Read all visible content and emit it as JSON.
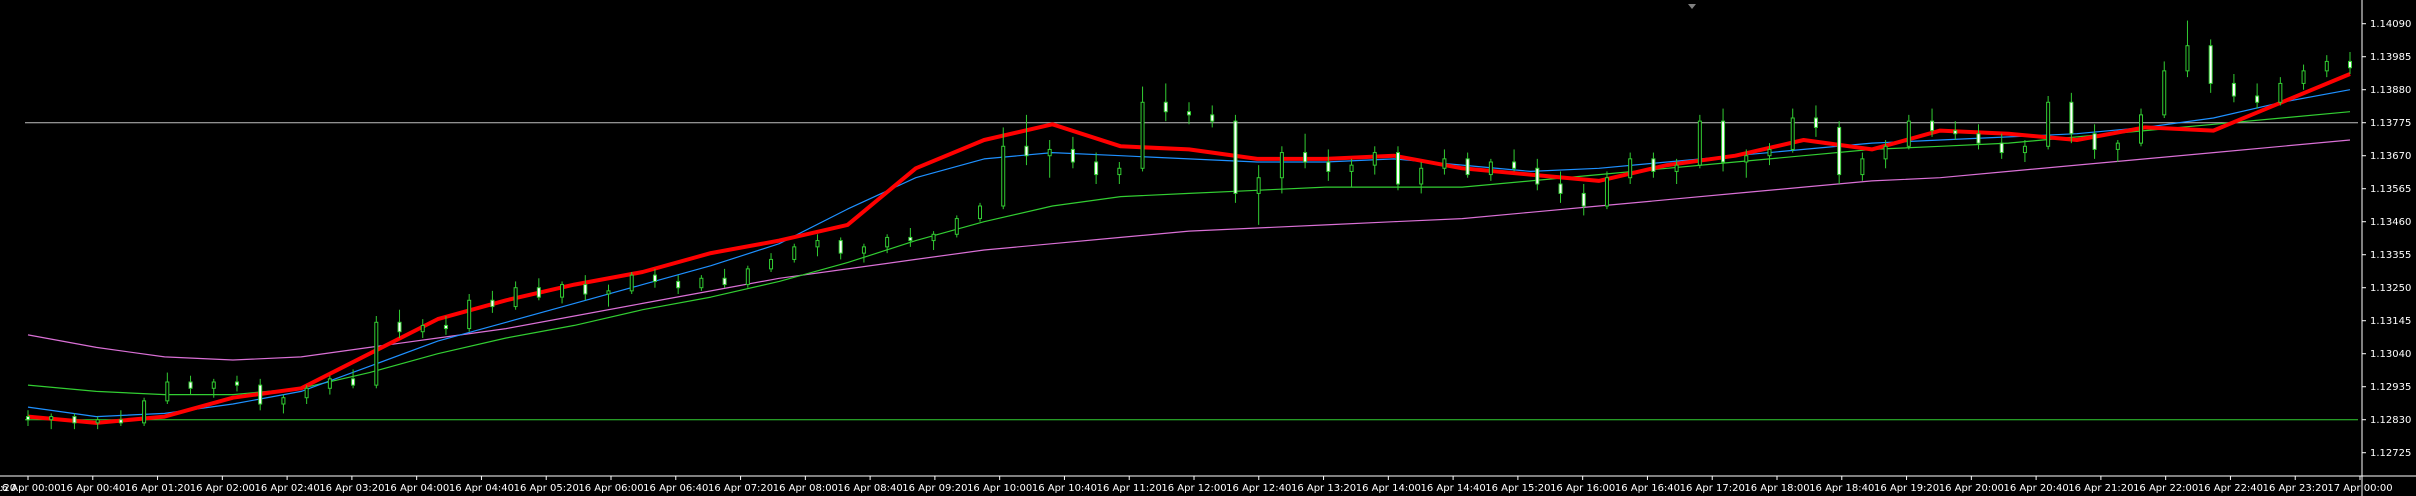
{
  "window": {
    "background": "#000000",
    "foreground": "#ffffff"
  },
  "chart_data": {
    "type": "candlestick",
    "y_range": [
      1.1267,
      1.1414
    ],
    "x_range": [
      "16 Apr 00:00",
      "17 Apr 00:00"
    ],
    "grid": false,
    "price_ticks": [
      "1.14090",
      "1.13985",
      "1.13880",
      "1.13775",
      "1.13670",
      "1.13565",
      "1.13460",
      "1.13355",
      "1.13250",
      "1.13145",
      "1.13040",
      "1.12935",
      "1.12830",
      "1.12725"
    ],
    "time_ticks": [
      "16 Apr 00:00",
      "16 Apr 00:40",
      "16 Apr 01:20",
      "16 Apr 02:00",
      "16 Apr 02:40",
      "16 Apr 03:20",
      "16 Apr 04:00",
      "16 Apr 04:40",
      "16 Apr 05:20",
      "16 Apr 06:00",
      "16 Apr 06:40",
      "16 Apr 07:20",
      "16 Apr 08:00",
      "16 Apr 08:40",
      "16 Apr 09:20",
      "16 Apr 10:00",
      "16 Apr 10:40",
      "16 Apr 11:20",
      "16 Apr 12:00",
      "16 Apr 12:40",
      "16 Apr 13:20",
      "16 Apr 14:00",
      "16 Apr 14:40",
      "16 Apr 15:20",
      "16 Apr 16:00",
      "16 Apr 16:40",
      "16 Apr 17:20",
      "16 Apr 18:00",
      "16 Apr 18:40",
      "16 Apr 19:20",
      "16 Apr 20:00",
      "16 Apr 20:40",
      "16 Apr 21:20",
      "16 Apr 22:00",
      "16 Apr 22:40",
      "16 Apr 23:20",
      "17 Apr 00:00"
    ],
    "left_partial_time_label": ":20",
    "horizontal_levels": [
      {
        "price": 1.13775,
        "color": "#c0c0c0"
      },
      {
        "price": 1.1283,
        "color": "#32cd32"
      }
    ],
    "colors": {
      "bull_candle": "#000000",
      "bear_candle": "#ffffff",
      "wick": "#32cd32",
      "ma_fast": "#ff0000",
      "ma_mid": "#1e90ff",
      "ma_slow": "#32cd32",
      "ma_long": "#da70d6"
    },
    "ma_long_points": [
      [
        0,
        1.131
      ],
      [
        5,
        1.1306
      ],
      [
        10,
        1.1303
      ],
      [
        15,
        1.1302
      ],
      [
        20,
        1.1303
      ],
      [
        25,
        1.1306
      ],
      [
        30,
        1.1309
      ],
      [
        35,
        1.1312
      ],
      [
        40,
        1.1316
      ],
      [
        45,
        1.132
      ],
      [
        50,
        1.1324
      ],
      [
        55,
        1.1328
      ],
      [
        60,
        1.1331
      ],
      [
        65,
        1.1334
      ],
      [
        70,
        1.1337
      ],
      [
        75,
        1.1339
      ],
      [
        80,
        1.1341
      ],
      [
        85,
        1.1343
      ],
      [
        90,
        1.1344
      ],
      [
        95,
        1.1345
      ],
      [
        100,
        1.1346
      ],
      [
        105,
        1.1347
      ],
      [
        110,
        1.1349
      ],
      [
        115,
        1.1351
      ],
      [
        120,
        1.1353
      ],
      [
        125,
        1.1355
      ],
      [
        130,
        1.1357
      ],
      [
        135,
        1.1359
      ],
      [
        140,
        1.136
      ],
      [
        145,
        1.1362
      ],
      [
        150,
        1.1364
      ],
      [
        155,
        1.1366
      ],
      [
        160,
        1.1368
      ],
      [
        165,
        1.137
      ],
      [
        170,
        1.1372
      ]
    ],
    "ma_slow_points": [
      [
        0,
        1.1294
      ],
      [
        5,
        1.1292
      ],
      [
        10,
        1.1291
      ],
      [
        15,
        1.1291
      ],
      [
        20,
        1.1293
      ],
      [
        25,
        1.1298
      ],
      [
        30,
        1.1304
      ],
      [
        35,
        1.1309
      ],
      [
        40,
        1.1313
      ],
      [
        45,
        1.1318
      ],
      [
        50,
        1.1322
      ],
      [
        55,
        1.1327
      ],
      [
        60,
        1.1333
      ],
      [
        65,
        1.134
      ],
      [
        70,
        1.1346
      ],
      [
        75,
        1.1351
      ],
      [
        80,
        1.1354
      ],
      [
        85,
        1.1355
      ],
      [
        90,
        1.1356
      ],
      [
        95,
        1.1357
      ],
      [
        100,
        1.1357
      ],
      [
        105,
        1.1357
      ],
      [
        110,
        1.1359
      ],
      [
        115,
        1.1361
      ],
      [
        120,
        1.1363
      ],
      [
        125,
        1.1365
      ],
      [
        130,
        1.1367
      ],
      [
        135,
        1.1369
      ],
      [
        140,
        1.137
      ],
      [
        145,
        1.1371
      ],
      [
        150,
        1.1373
      ],
      [
        155,
        1.1375
      ],
      [
        160,
        1.1377
      ],
      [
        165,
        1.1379
      ],
      [
        170,
        1.1381
      ]
    ],
    "ma_mid_points": [
      [
        0,
        1.1287
      ],
      [
        5,
        1.1284
      ],
      [
        10,
        1.1285
      ],
      [
        15,
        1.1288
      ],
      [
        20,
        1.1292
      ],
      [
        25,
        1.13
      ],
      [
        30,
        1.1308
      ],
      [
        35,
        1.1314
      ],
      [
        40,
        1.132
      ],
      [
        45,
        1.1326
      ],
      [
        50,
        1.1332
      ],
      [
        55,
        1.1339
      ],
      [
        60,
        1.135
      ],
      [
        65,
        1.136
      ],
      [
        70,
        1.1366
      ],
      [
        75,
        1.1368
      ],
      [
        80,
        1.1367
      ],
      [
        85,
        1.1366
      ],
      [
        90,
        1.1365
      ],
      [
        95,
        1.1365
      ],
      [
        100,
        1.1366
      ],
      [
        105,
        1.1364
      ],
      [
        110,
        1.1362
      ],
      [
        115,
        1.1363
      ],
      [
        120,
        1.1365
      ],
      [
        125,
        1.1367
      ],
      [
        130,
        1.1369
      ],
      [
        135,
        1.1371
      ],
      [
        140,
        1.1372
      ],
      [
        145,
        1.1373
      ],
      [
        150,
        1.1374
      ],
      [
        155,
        1.1376
      ],
      [
        160,
        1.1379
      ],
      [
        165,
        1.1384
      ],
      [
        170,
        1.1388
      ]
    ],
    "ma_fast_points": [
      [
        0,
        1.1284
      ],
      [
        5,
        1.1282
      ],
      [
        10,
        1.1284
      ],
      [
        15,
        1.129
      ],
      [
        20,
        1.1293
      ],
      [
        25,
        1.1304
      ],
      [
        30,
        1.1315
      ],
      [
        35,
        1.1321
      ],
      [
        40,
        1.1326
      ],
      [
        45,
        1.133
      ],
      [
        50,
        1.1336
      ],
      [
        55,
        1.134
      ],
      [
        60,
        1.1345
      ],
      [
        65,
        1.1363
      ],
      [
        70,
        1.1372
      ],
      [
        75,
        1.1377
      ],
      [
        80,
        1.137
      ],
      [
        85,
        1.1369
      ],
      [
        90,
        1.1366
      ],
      [
        95,
        1.1366
      ],
      [
        100,
        1.1367
      ],
      [
        105,
        1.1363
      ],
      [
        110,
        1.1361
      ],
      [
        115,
        1.1359
      ],
      [
        120,
        1.1364
      ],
      [
        125,
        1.1367
      ],
      [
        130,
        1.1372
      ],
      [
        135,
        1.1369
      ],
      [
        140,
        1.1375
      ],
      [
        145,
        1.1374
      ],
      [
        150,
        1.1372
      ],
      [
        155,
        1.1376
      ],
      [
        160,
        1.1375
      ],
      [
        165,
        1.1384
      ],
      [
        170,
        1.1393
      ]
    ],
    "candles": [
      {
        "o": 1.1284,
        "h": 1.1286,
        "l": 1.1281,
        "c": 1.1283
      },
      {
        "o": 1.1283,
        "h": 1.1285,
        "l": 1.128,
        "c": 1.1284
      },
      {
        "o": 1.1284,
        "h": 1.1285,
        "l": 1.128,
        "c": 1.1282
      },
      {
        "o": 1.1282,
        "h": 1.1284,
        "l": 1.128,
        "c": 1.1283
      },
      {
        "o": 1.1283,
        "h": 1.1286,
        "l": 1.1281,
        "c": 1.1282
      },
      {
        "o": 1.1282,
        "h": 1.129,
        "l": 1.1281,
        "c": 1.1289
      },
      {
        "o": 1.1289,
        "h": 1.1298,
        "l": 1.1288,
        "c": 1.1295
      },
      {
        "o": 1.1295,
        "h": 1.1297,
        "l": 1.1291,
        "c": 1.1293
      },
      {
        "o": 1.1293,
        "h": 1.1296,
        "l": 1.129,
        "c": 1.1295
      },
      {
        "o": 1.1295,
        "h": 1.1297,
        "l": 1.1292,
        "c": 1.1294
      },
      {
        "o": 1.1294,
        "h": 1.1296,
        "l": 1.1286,
        "c": 1.1288
      },
      {
        "o": 1.1288,
        "h": 1.1291,
        "l": 1.1285,
        "c": 1.129
      },
      {
        "o": 1.129,
        "h": 1.1294,
        "l": 1.1288,
        "c": 1.1293
      },
      {
        "o": 1.1293,
        "h": 1.1297,
        "l": 1.1291,
        "c": 1.1296
      },
      {
        "o": 1.1296,
        "h": 1.1299,
        "l": 1.1293,
        "c": 1.1294
      },
      {
        "o": 1.1294,
        "h": 1.1316,
        "l": 1.1293,
        "c": 1.1314
      },
      {
        "o": 1.1314,
        "h": 1.1318,
        "l": 1.1309,
        "c": 1.1311
      },
      {
        "o": 1.1311,
        "h": 1.1315,
        "l": 1.1309,
        "c": 1.1313
      },
      {
        "o": 1.1313,
        "h": 1.1316,
        "l": 1.131,
        "c": 1.1312
      },
      {
        "o": 1.1312,
        "h": 1.1323,
        "l": 1.1311,
        "c": 1.1321
      },
      {
        "o": 1.1321,
        "h": 1.1324,
        "l": 1.1317,
        "c": 1.1319
      },
      {
        "o": 1.1319,
        "h": 1.1327,
        "l": 1.1318,
        "c": 1.1325
      },
      {
        "o": 1.1325,
        "h": 1.1328,
        "l": 1.1321,
        "c": 1.1322
      },
      {
        "o": 1.1322,
        "h": 1.1327,
        "l": 1.132,
        "c": 1.1326
      },
      {
        "o": 1.1326,
        "h": 1.1329,
        "l": 1.1321,
        "c": 1.1323
      },
      {
        "o": 1.1323,
        "h": 1.1326,
        "l": 1.1319,
        "c": 1.1324
      },
      {
        "o": 1.1324,
        "h": 1.133,
        "l": 1.1323,
        "c": 1.1329
      },
      {
        "o": 1.1329,
        "h": 1.1331,
        "l": 1.1325,
        "c": 1.1327
      },
      {
        "o": 1.1327,
        "h": 1.1329,
        "l": 1.1323,
        "c": 1.1325
      },
      {
        "o": 1.1325,
        "h": 1.1329,
        "l": 1.1324,
        "c": 1.1328
      },
      {
        "o": 1.1328,
        "h": 1.1331,
        "l": 1.1325,
        "c": 1.1326
      },
      {
        "o": 1.1326,
        "h": 1.1332,
        "l": 1.1325,
        "c": 1.1331
      },
      {
        "o": 1.1331,
        "h": 1.1336,
        "l": 1.133,
        "c": 1.1334
      },
      {
        "o": 1.1334,
        "h": 1.1339,
        "l": 1.1333,
        "c": 1.1338
      },
      {
        "o": 1.1338,
        "h": 1.1342,
        "l": 1.1335,
        "c": 1.134
      },
      {
        "o": 1.134,
        "h": 1.1341,
        "l": 1.1334,
        "c": 1.1336
      },
      {
        "o": 1.1336,
        "h": 1.1339,
        "l": 1.1333,
        "c": 1.1338
      },
      {
        "o": 1.1338,
        "h": 1.1342,
        "l": 1.1336,
        "c": 1.1341
      },
      {
        "o": 1.1341,
        "h": 1.1344,
        "l": 1.1338,
        "c": 1.134
      },
      {
        "o": 1.134,
        "h": 1.1343,
        "l": 1.1337,
        "c": 1.1342
      },
      {
        "o": 1.1342,
        "h": 1.1348,
        "l": 1.1341,
        "c": 1.1347
      },
      {
        "o": 1.1347,
        "h": 1.1352,
        "l": 1.1346,
        "c": 1.1351
      },
      {
        "o": 1.1351,
        "h": 1.1376,
        "l": 1.135,
        "c": 1.137
      },
      {
        "o": 1.137,
        "h": 1.138,
        "l": 1.1364,
        "c": 1.1367
      },
      {
        "o": 1.1367,
        "h": 1.1372,
        "l": 1.136,
        "c": 1.1369
      },
      {
        "o": 1.1369,
        "h": 1.1373,
        "l": 1.1363,
        "c": 1.1365
      },
      {
        "o": 1.1365,
        "h": 1.1368,
        "l": 1.1358,
        "c": 1.1361
      },
      {
        "o": 1.1361,
        "h": 1.1365,
        "l": 1.1358,
        "c": 1.1363
      },
      {
        "o": 1.1363,
        "h": 1.1389,
        "l": 1.1362,
        "c": 1.1384
      },
      {
        "o": 1.1384,
        "h": 1.139,
        "l": 1.1378,
        "c": 1.1381
      },
      {
        "o": 1.1381,
        "h": 1.1384,
        "l": 1.1377,
        "c": 1.138
      },
      {
        "o": 1.138,
        "h": 1.1383,
        "l": 1.1376,
        "c": 1.1378
      },
      {
        "o": 1.1378,
        "h": 1.138,
        "l": 1.1352,
        "c": 1.1355
      },
      {
        "o": 1.1355,
        "h": 1.1364,
        "l": 1.1345,
        "c": 1.136
      },
      {
        "o": 1.136,
        "h": 1.137,
        "l": 1.1355,
        "c": 1.1368
      },
      {
        "o": 1.1368,
        "h": 1.1374,
        "l": 1.1363,
        "c": 1.1365
      },
      {
        "o": 1.1365,
        "h": 1.1369,
        "l": 1.1359,
        "c": 1.1362
      },
      {
        "o": 1.1362,
        "h": 1.1366,
        "l": 1.1357,
        "c": 1.1364
      },
      {
        "o": 1.1364,
        "h": 1.137,
        "l": 1.1361,
        "c": 1.1368
      },
      {
        "o": 1.1368,
        "h": 1.137,
        "l": 1.1356,
        "c": 1.1358
      },
      {
        "o": 1.1358,
        "h": 1.1365,
        "l": 1.1355,
        "c": 1.1363
      },
      {
        "o": 1.1363,
        "h": 1.1369,
        "l": 1.1361,
        "c": 1.1366
      },
      {
        "o": 1.1366,
        "h": 1.1368,
        "l": 1.136,
        "c": 1.1361
      },
      {
        "o": 1.1361,
        "h": 1.1366,
        "l": 1.1359,
        "c": 1.1365
      },
      {
        "o": 1.1365,
        "h": 1.1369,
        "l": 1.1362,
        "c": 1.1363
      },
      {
        "o": 1.1363,
        "h": 1.1366,
        "l": 1.1356,
        "c": 1.1358
      },
      {
        "o": 1.1358,
        "h": 1.1362,
        "l": 1.1352,
        "c": 1.1355
      },
      {
        "o": 1.1355,
        "h": 1.1358,
        "l": 1.1348,
        "c": 1.1351
      },
      {
        "o": 1.1351,
        "h": 1.1362,
        "l": 1.135,
        "c": 1.136
      },
      {
        "o": 1.136,
        "h": 1.1368,
        "l": 1.1358,
        "c": 1.1366
      },
      {
        "o": 1.1366,
        "h": 1.1368,
        "l": 1.136,
        "c": 1.1362
      },
      {
        "o": 1.1362,
        "h": 1.1366,
        "l": 1.1358,
        "c": 1.1364
      },
      {
        "o": 1.1364,
        "h": 1.138,
        "l": 1.1363,
        "c": 1.1378
      },
      {
        "o": 1.1378,
        "h": 1.1382,
        "l": 1.1362,
        "c": 1.1365
      },
      {
        "o": 1.1365,
        "h": 1.1369,
        "l": 1.136,
        "c": 1.1367
      },
      {
        "o": 1.1367,
        "h": 1.1371,
        "l": 1.1364,
        "c": 1.1369
      },
      {
        "o": 1.1369,
        "h": 1.1382,
        "l": 1.1368,
        "c": 1.1379
      },
      {
        "o": 1.1379,
        "h": 1.1383,
        "l": 1.1373,
        "c": 1.1376
      },
      {
        "o": 1.1376,
        "h": 1.1378,
        "l": 1.1358,
        "c": 1.1361
      },
      {
        "o": 1.1361,
        "h": 1.1368,
        "l": 1.1359,
        "c": 1.1366
      },
      {
        "o": 1.1366,
        "h": 1.1372,
        "l": 1.1363,
        "c": 1.137
      },
      {
        "o": 1.137,
        "h": 1.138,
        "l": 1.1369,
        "c": 1.1378
      },
      {
        "o": 1.1378,
        "h": 1.1382,
        "l": 1.1373,
        "c": 1.1375
      },
      {
        "o": 1.1375,
        "h": 1.1378,
        "l": 1.1372,
        "c": 1.1374
      },
      {
        "o": 1.1374,
        "h": 1.1377,
        "l": 1.1369,
        "c": 1.1371
      },
      {
        "o": 1.1371,
        "h": 1.1374,
        "l": 1.1366,
        "c": 1.1368
      },
      {
        "o": 1.1368,
        "h": 1.1372,
        "l": 1.1365,
        "c": 1.137
      },
      {
        "o": 1.137,
        "h": 1.1386,
        "l": 1.1369,
        "c": 1.1384
      },
      {
        "o": 1.1384,
        "h": 1.1387,
        "l": 1.1371,
        "c": 1.1374
      },
      {
        "o": 1.1374,
        "h": 1.1377,
        "l": 1.1366,
        "c": 1.1369
      },
      {
        "o": 1.1369,
        "h": 1.1372,
        "l": 1.1365,
        "c": 1.1371
      },
      {
        "o": 1.1371,
        "h": 1.1382,
        "l": 1.137,
        "c": 1.138
      },
      {
        "o": 1.138,
        "h": 1.1397,
        "l": 1.1379,
        "c": 1.1394
      },
      {
        "o": 1.1394,
        "h": 1.141,
        "l": 1.1392,
        "c": 1.1402
      },
      {
        "o": 1.1402,
        "h": 1.1404,
        "l": 1.1387,
        "c": 1.139
      },
      {
        "o": 1.139,
        "h": 1.1393,
        "l": 1.1384,
        "c": 1.1386
      },
      {
        "o": 1.1386,
        "h": 1.139,
        "l": 1.1382,
        "c": 1.1384
      },
      {
        "o": 1.1384,
        "h": 1.1392,
        "l": 1.1383,
        "c": 1.139
      },
      {
        "o": 1.139,
        "h": 1.1396,
        "l": 1.1388,
        "c": 1.1394
      },
      {
        "o": 1.1394,
        "h": 1.1399,
        "l": 1.1392,
        "c": 1.1397
      },
      {
        "o": 1.1397,
        "h": 1.14,
        "l": 1.1393,
        "c": 1.1395
      }
    ]
  }
}
